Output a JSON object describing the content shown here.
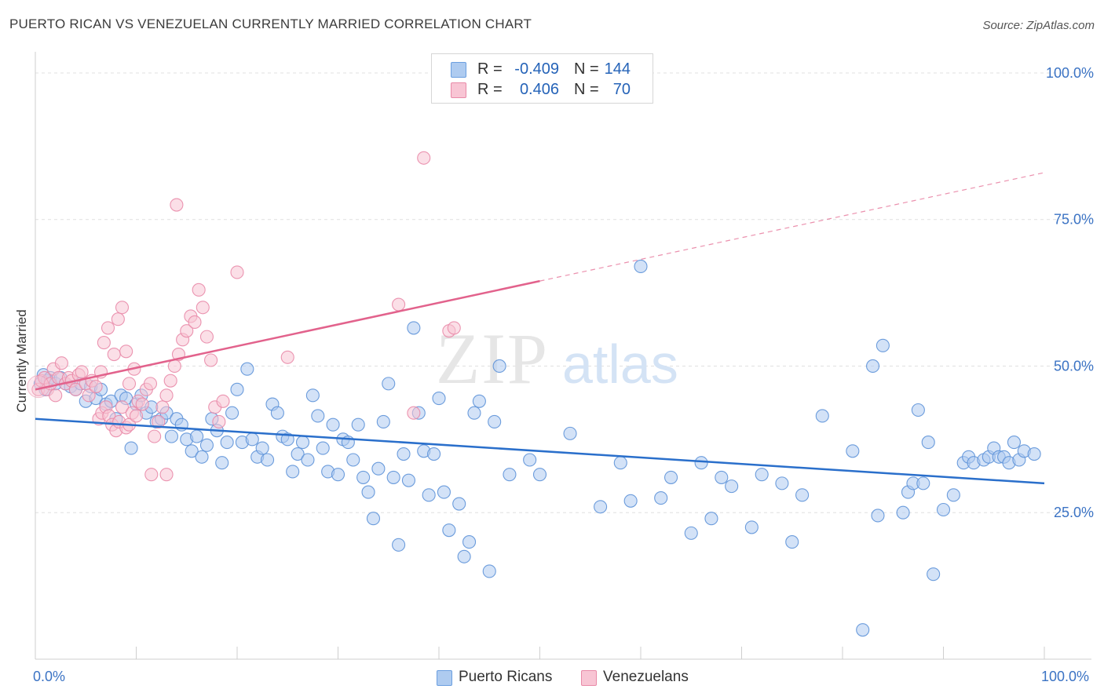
{
  "header": {
    "title": "PUERTO RICAN VS VENEZUELAN CURRENTLY MARRIED CORRELATION CHART",
    "source": "Source: ZipAtlas.com"
  },
  "watermark": {
    "zip": "ZIP",
    "atlas": "atlas"
  },
  "legend": {
    "rows": [
      {
        "r_label": "R =",
        "r_value": "-0.409",
        "n_label": "N =",
        "n_value": "144",
        "color": "#aecbf0",
        "border": "#6b9fe0"
      },
      {
        "r_label": "R =",
        "r_value": "0.406",
        "n_label": "N =",
        "n_value": "70",
        "color": "#f8c5d4",
        "border": "#e98aa8"
      }
    ]
  },
  "bottom_legend": {
    "items": [
      {
        "label": "Puerto Ricans",
        "color": "#aecbf0",
        "border": "#6b9fe0"
      },
      {
        "label": "Venezuelans",
        "color": "#f8c5d4",
        "border": "#e98aa8"
      }
    ]
  },
  "chart_data": {
    "type": "scatter",
    "title": "PUERTO RICAN VS VENEZUELAN CURRENTLY MARRIED CORRELATION CHART",
    "xlabel": "",
    "ylabel": "Currently Married",
    "xlim": [
      0,
      100
    ],
    "ylim": [
      0,
      102
    ],
    "x_tick_labels": [
      "0.0%",
      "100.0%"
    ],
    "y_tick_labels": [
      {
        "value": 100,
        "label": "100.0%"
      },
      {
        "value": 75,
        "label": "75.0%"
      },
      {
        "value": 50,
        "label": "50.0%"
      },
      {
        "value": 25,
        "label": "25.0%"
      }
    ],
    "grid": "horizontal dashed",
    "legend_position": "top-center",
    "colors": {
      "puerto_ricans_fill": "#aecbf0",
      "puerto_ricans_stroke": "#5d92d8",
      "puerto_ricans_line": "#2a6fcb",
      "venezuelans_fill": "#f8c5d4",
      "venezuelans_stroke": "#e98aa8",
      "venezuelans_line": "#e2628c"
    },
    "series": [
      {
        "name": "Puerto Ricans",
        "R": -0.409,
        "N": 144,
        "trend": {
          "x": [
            0,
            100
          ],
          "y": [
            41.0,
            30.0
          ]
        },
        "points": [
          [
            0.5,
            47
          ],
          [
            0.8,
            48.5
          ],
          [
            1,
            46
          ],
          [
            1.2,
            47.5
          ],
          [
            1.5,
            48
          ],
          [
            2,
            47
          ],
          [
            2.5,
            48
          ],
          [
            3,
            47
          ],
          [
            3.5,
            46.5
          ],
          [
            4,
            46
          ],
          [
            4.5,
            47
          ],
          [
            5,
            44
          ],
          [
            5.5,
            46.5
          ],
          [
            6,
            44.5
          ],
          [
            6.5,
            46
          ],
          [
            7,
            43.5
          ],
          [
            7.5,
            44
          ],
          [
            8,
            41
          ],
          [
            8.5,
            45
          ],
          [
            9,
            44.5
          ],
          [
            9.5,
            36
          ],
          [
            10,
            43.5
          ],
          [
            10.5,
            45
          ],
          [
            11,
            42
          ],
          [
            11.5,
            43
          ],
          [
            12,
            40.5
          ],
          [
            12.5,
            41
          ],
          [
            13,
            42
          ],
          [
            13.5,
            38
          ],
          [
            14,
            41
          ],
          [
            14.5,
            40
          ],
          [
            15,
            37.5
          ],
          [
            15.5,
            35.5
          ],
          [
            16,
            38
          ],
          [
            16.5,
            34.5
          ],
          [
            17,
            36.5
          ],
          [
            17.5,
            41
          ],
          [
            18,
            39
          ],
          [
            18.5,
            33.5
          ],
          [
            19,
            37
          ],
          [
            19.5,
            42
          ],
          [
            20,
            46
          ],
          [
            20.5,
            37
          ],
          [
            21,
            49.5
          ],
          [
            21.5,
            37.5
          ],
          [
            22,
            34.5
          ],
          [
            22.5,
            36
          ],
          [
            23,
            34
          ],
          [
            23.5,
            43.5
          ],
          [
            24,
            42
          ],
          [
            24.5,
            38
          ],
          [
            25,
            37.5
          ],
          [
            25.5,
            32
          ],
          [
            26,
            35
          ],
          [
            26.5,
            37
          ],
          [
            27,
            34
          ],
          [
            27.5,
            45
          ],
          [
            28,
            41.5
          ],
          [
            28.5,
            36
          ],
          [
            29,
            32
          ],
          [
            29.5,
            40
          ],
          [
            30,
            31.5
          ],
          [
            30.5,
            37.5
          ],
          [
            31,
            37
          ],
          [
            31.5,
            34
          ],
          [
            32,
            40
          ],
          [
            32.5,
            31
          ],
          [
            33,
            28.5
          ],
          [
            33.5,
            24
          ],
          [
            34,
            32.5
          ],
          [
            34.5,
            40.5
          ],
          [
            35,
            47
          ],
          [
            35.5,
            31
          ],
          [
            36,
            19.5
          ],
          [
            36.5,
            35
          ],
          [
            37,
            30.5
          ],
          [
            37.5,
            56.5
          ],
          [
            38,
            42
          ],
          [
            38.5,
            35.5
          ],
          [
            39,
            28
          ],
          [
            39.5,
            35
          ],
          [
            40,
            44.5
          ],
          [
            40.5,
            28.5
          ],
          [
            41,
            22
          ],
          [
            42,
            26.5
          ],
          [
            42.5,
            17.5
          ],
          [
            43,
            20
          ],
          [
            43.5,
            42
          ],
          [
            44,
            44
          ],
          [
            45,
            15
          ],
          [
            45.5,
            40.5
          ],
          [
            46,
            50
          ],
          [
            47,
            31.5
          ],
          [
            49,
            34
          ],
          [
            50,
            31.5
          ],
          [
            53,
            38.5
          ],
          [
            56,
            26
          ],
          [
            58,
            33.5
          ],
          [
            59,
            27
          ],
          [
            60,
            67
          ],
          [
            62,
            27.5
          ],
          [
            63,
            31
          ],
          [
            65,
            21.5
          ],
          [
            66,
            33.5
          ],
          [
            67,
            24
          ],
          [
            68,
            31
          ],
          [
            69,
            29.5
          ],
          [
            71,
            22.5
          ],
          [
            72,
            31.5
          ],
          [
            74,
            30
          ],
          [
            75,
            20
          ],
          [
            76,
            28
          ],
          [
            78,
            41.5
          ],
          [
            81,
            35.5
          ],
          [
            82,
            5
          ],
          [
            83,
            50
          ],
          [
            83.5,
            24.5
          ],
          [
            84,
            53.5
          ],
          [
            86,
            25
          ],
          [
            86.5,
            28.5
          ],
          [
            87,
            30
          ],
          [
            87.5,
            42.5
          ],
          [
            88,
            30
          ],
          [
            88.5,
            37
          ],
          [
            89,
            14.5
          ],
          [
            90,
            25.5
          ],
          [
            91,
            28
          ],
          [
            92,
            33.5
          ],
          [
            92.5,
            34.5
          ],
          [
            93,
            33.5
          ],
          [
            94,
            34
          ],
          [
            94.5,
            34.5
          ],
          [
            95,
            36
          ],
          [
            95.5,
            34.5
          ],
          [
            96,
            34.5
          ],
          [
            96.5,
            33.5
          ],
          [
            97,
            37
          ],
          [
            97.5,
            34
          ],
          [
            98,
            35.5
          ],
          [
            99,
            35
          ]
        ]
      },
      {
        "name": "Venezuelans",
        "R": 0.406,
        "N": 70,
        "trend": {
          "x": [
            0,
            50
          ],
          "y": [
            46.0,
            64.5
          ]
        },
        "trend_extension": {
          "x": [
            50,
            100
          ],
          "y": [
            64.5,
            83.0
          ]
        },
        "points": [
          [
            0.3,
            46
          ],
          [
            0.6,
            47.5
          ],
          [
            0.9,
            48
          ],
          [
            1.2,
            46
          ],
          [
            1.5,
            47
          ],
          [
            1.8,
            49.5
          ],
          [
            2,
            45
          ],
          [
            2.3,
            48
          ],
          [
            2.6,
            50.5
          ],
          [
            3,
            47
          ],
          [
            3.3,
            48
          ],
          [
            3.6,
            47.5
          ],
          [
            4,
            46
          ],
          [
            4.3,
            48.5
          ],
          [
            4.6,
            49
          ],
          [
            5,
            47
          ],
          [
            5.3,
            45
          ],
          [
            5.6,
            47.5
          ],
          [
            6,
            46.5
          ],
          [
            6.3,
            41
          ],
          [
            6.6,
            42
          ],
          [
            7,
            43
          ],
          [
            7.3,
            41.5
          ],
          [
            7.6,
            40
          ],
          [
            8,
            39
          ],
          [
            8.3,
            40.5
          ],
          [
            8.6,
            43
          ],
          [
            9,
            39.5
          ],
          [
            9.3,
            40
          ],
          [
            9.6,
            42
          ],
          [
            10,
            41.5
          ],
          [
            6.5,
            49
          ],
          [
            6.8,
            54
          ],
          [
            7.2,
            56.5
          ],
          [
            7.8,
            52
          ],
          [
            8.2,
            58
          ],
          [
            8.6,
            60
          ],
          [
            9,
            52.5
          ],
          [
            9.3,
            47
          ],
          [
            9.8,
            49.5
          ],
          [
            10.2,
            44
          ],
          [
            10.6,
            43.5
          ],
          [
            11,
            46
          ],
          [
            11.4,
            47
          ],
          [
            11.8,
            38
          ],
          [
            12.2,
            40.5
          ],
          [
            12.6,
            43
          ],
          [
            13,
            45
          ],
          [
            13.4,
            47.5
          ],
          [
            13.8,
            50
          ],
          [
            14.2,
            52
          ],
          [
            14.6,
            54.5
          ],
          [
            15,
            56
          ],
          [
            15.4,
            58.5
          ],
          [
            15.8,
            57.5
          ],
          [
            16.2,
            63
          ],
          [
            16.6,
            60
          ],
          [
            17,
            55
          ],
          [
            17.4,
            51
          ],
          [
            17.8,
            43
          ],
          [
            18.2,
            40.5
          ],
          [
            18.6,
            44
          ],
          [
            14,
            77.5
          ],
          [
            11.5,
            31.5
          ],
          [
            13,
            31.5
          ],
          [
            20,
            66
          ],
          [
            25,
            51.5
          ],
          [
            36,
            60.5
          ],
          [
            37.5,
            42
          ],
          [
            38.5,
            85.5
          ],
          [
            41,
            56
          ],
          [
            41.5,
            56.5
          ]
        ]
      }
    ]
  }
}
